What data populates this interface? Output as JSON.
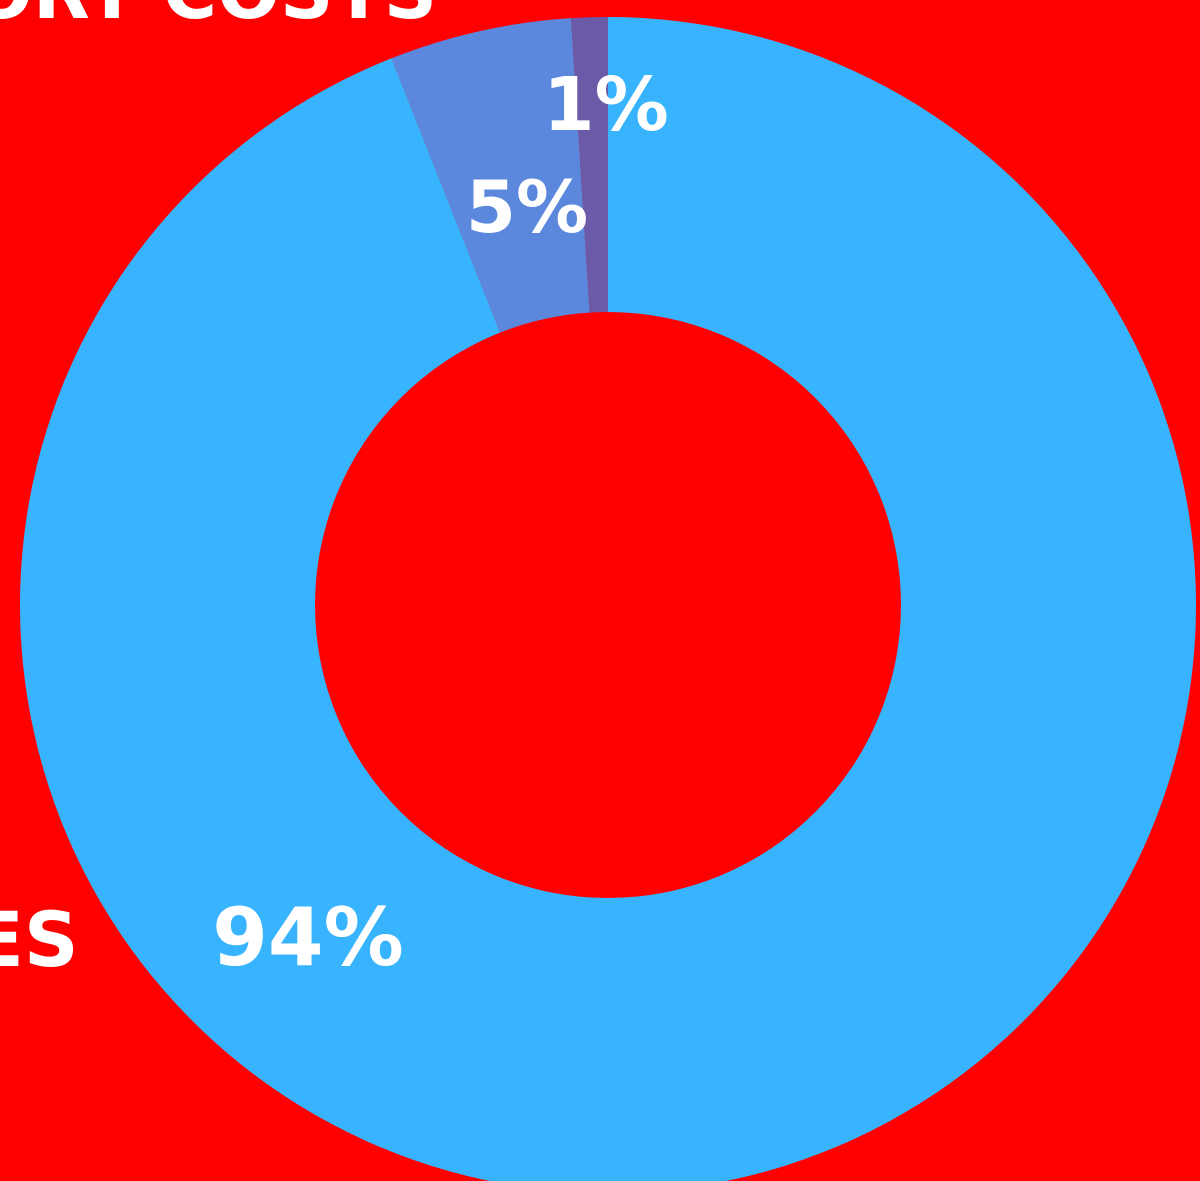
{
  "colors": {
    "background": "#ff0000",
    "hole": "#ff0000",
    "text": "#ffffff"
  },
  "header_fragment": "ORT COSTS",
  "side_fragment": "ES",
  "chart_data": {
    "type": "pie",
    "donut": true,
    "slices": [
      {
        "value": 94,
        "label": "94%",
        "color": "#38b4fe"
      },
      {
        "value": 5,
        "label": "5%",
        "color": "#5b87dc"
      },
      {
        "value": 1,
        "label": "1%",
        "color": "#6a5aa8"
      }
    ]
  }
}
